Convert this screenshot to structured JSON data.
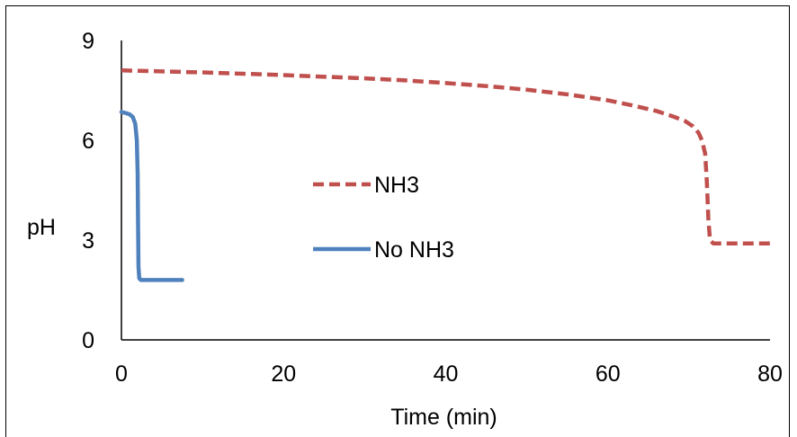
{
  "chart_data": {
    "type": "line",
    "xlabel": "Time (min)",
    "ylabel": "pH",
    "xlim": [
      0,
      80
    ],
    "ylim": [
      0,
      9
    ],
    "xticks": [
      "0",
      "20",
      "40",
      "60",
      "80"
    ],
    "yticks": [
      "0",
      "3",
      "6",
      "9"
    ],
    "grid": false,
    "legend_position": "center",
    "series": [
      {
        "name": "NH3",
        "color": "#c0504d",
        "style": "dashed",
        "x": [
          0,
          5,
          10,
          15,
          20,
          25,
          30,
          35,
          40,
          45,
          50,
          55,
          60,
          63,
          66,
          68,
          69.5,
          70.5,
          71.2,
          71.6,
          72,
          72.2,
          72.4,
          72.6,
          73,
          75,
          78,
          80
        ],
        "y": [
          8.1,
          8.07,
          8.04,
          8.0,
          7.96,
          7.91,
          7.86,
          7.8,
          7.72,
          7.63,
          7.52,
          7.38,
          7.2,
          7.05,
          6.88,
          6.72,
          6.58,
          6.42,
          6.22,
          6.0,
          5.6,
          4.8,
          3.6,
          3.0,
          2.9,
          2.9,
          2.9,
          2.9
        ]
      },
      {
        "name": "No NH3",
        "color": "#4f81bd",
        "style": "solid",
        "x": [
          0,
          0.5,
          1,
          1.4,
          1.7,
          1.9,
          2.0,
          2.05,
          2.1,
          2.2,
          2.4,
          3,
          5,
          7.5
        ],
        "y": [
          6.85,
          6.82,
          6.78,
          6.7,
          6.5,
          6.0,
          5.0,
          3.5,
          2.2,
          1.85,
          1.8,
          1.8,
          1.8,
          1.8
        ]
      }
    ]
  }
}
